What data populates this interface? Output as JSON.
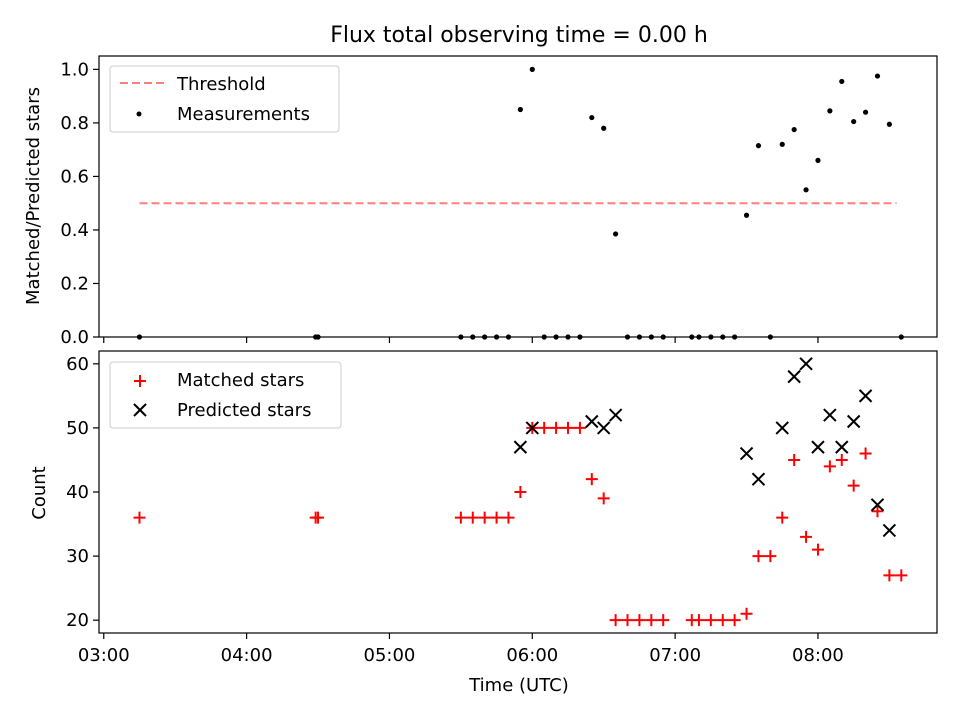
{
  "chart_data": [
    {
      "type": "scatter",
      "title": "Flux total observing time = 0.00 h",
      "ylabel": "Matched/Predicted stars",
      "ylim": [
        0,
        1.05
      ],
      "yticks": [
        0.0,
        0.2,
        0.4,
        0.6,
        0.8,
        1.0
      ],
      "ytick_labels": [
        "0.0",
        "0.2",
        "0.4",
        "0.6",
        "0.8",
        "1.0"
      ],
      "xlim": [
        "02:58",
        "08:50"
      ],
      "legend_position": "top-left",
      "threshold": {
        "name": "Threshold",
        "y": 0.5,
        "x_start": "03:15",
        "x_end": "08:33",
        "color": "#ff7f7f",
        "style": "dashed"
      },
      "series": [
        {
          "name": "Measurements",
          "marker": "dot",
          "color": "#000000",
          "points": [
            [
              "03:15",
              0.0
            ],
            [
              "04:29",
              0.0
            ],
            [
              "04:30",
              0.0
            ],
            [
              "05:30",
              0.0
            ],
            [
              "05:35",
              0.0
            ],
            [
              "05:40",
              0.0
            ],
            [
              "05:45",
              0.0
            ],
            [
              "05:50",
              0.0
            ],
            [
              "05:55",
              0.85
            ],
            [
              "06:00",
              1.0
            ],
            [
              "06:05",
              0.0
            ],
            [
              "06:10",
              0.0
            ],
            [
              "06:15",
              0.0
            ],
            [
              "06:20",
              0.0
            ],
            [
              "06:25",
              0.82
            ],
            [
              "06:30",
              0.78
            ],
            [
              "06:35",
              0.385
            ],
            [
              "06:40",
              0.0
            ],
            [
              "06:45",
              0.0
            ],
            [
              "06:50",
              0.0
            ],
            [
              "06:55",
              0.0
            ],
            [
              "07:07",
              0.0
            ],
            [
              "07:10",
              0.0
            ],
            [
              "07:15",
              0.0
            ],
            [
              "07:20",
              0.0
            ],
            [
              "07:25",
              0.0
            ],
            [
              "07:30",
              0.455
            ],
            [
              "07:35",
              0.715
            ],
            [
              "07:40",
              0.0
            ],
            [
              "07:45",
              0.72
            ],
            [
              "07:50",
              0.775
            ],
            [
              "07:55",
              0.55
            ],
            [
              "08:00",
              0.66
            ],
            [
              "08:05",
              0.845
            ],
            [
              "08:10",
              0.955
            ],
            [
              "08:15",
              0.805
            ],
            [
              "08:20",
              0.84
            ],
            [
              "08:25",
              0.975
            ],
            [
              "08:30",
              0.795
            ],
            [
              "08:35",
              0.0
            ]
          ]
        }
      ]
    },
    {
      "type": "scatter",
      "xlabel": "Time (UTC)",
      "ylabel": "Count",
      "ylim": [
        18,
        62
      ],
      "yticks": [
        20,
        30,
        40,
        50,
        60
      ],
      "ytick_labels": [
        "20",
        "30",
        "40",
        "50",
        "60"
      ],
      "xlim": [
        "02:58",
        "08:50"
      ],
      "xticks": [
        "03:00",
        "04:00",
        "05:00",
        "06:00",
        "07:00",
        "08:00"
      ],
      "xtick_labels": [
        "03:00",
        "04:00",
        "05:00",
        "06:00",
        "07:00",
        "08:00"
      ],
      "legend_position": "top-left",
      "series": [
        {
          "name": "Matched stars",
          "marker": "plus",
          "color": "#ff0000",
          "points": [
            [
              "03:15",
              36
            ],
            [
              "04:29",
              36
            ],
            [
              "04:30",
              36
            ],
            [
              "05:30",
              36
            ],
            [
              "05:35",
              36
            ],
            [
              "05:40",
              36
            ],
            [
              "05:45",
              36
            ],
            [
              "05:50",
              36
            ],
            [
              "05:55",
              40
            ],
            [
              "06:00",
              50
            ],
            [
              "06:05",
              50
            ],
            [
              "06:10",
              50
            ],
            [
              "06:15",
              50
            ],
            [
              "06:20",
              50
            ],
            [
              "06:25",
              42
            ],
            [
              "06:30",
              39
            ],
            [
              "06:35",
              20
            ],
            [
              "06:40",
              20
            ],
            [
              "06:45",
              20
            ],
            [
              "06:50",
              20
            ],
            [
              "06:55",
              20
            ],
            [
              "07:07",
              20
            ],
            [
              "07:10",
              20
            ],
            [
              "07:15",
              20
            ],
            [
              "07:20",
              20
            ],
            [
              "07:25",
              20
            ],
            [
              "07:30",
              21
            ],
            [
              "07:35",
              30
            ],
            [
              "07:40",
              30
            ],
            [
              "07:45",
              36
            ],
            [
              "07:50",
              45
            ],
            [
              "07:55",
              33
            ],
            [
              "08:00",
              31
            ],
            [
              "08:05",
              44
            ],
            [
              "08:10",
              45
            ],
            [
              "08:15",
              41
            ],
            [
              "08:20",
              46
            ],
            [
              "08:25",
              37
            ],
            [
              "08:30",
              27
            ],
            [
              "08:35",
              27
            ]
          ]
        },
        {
          "name": "Predicted stars",
          "marker": "x",
          "color": "#000000",
          "points": [
            [
              "05:55",
              47
            ],
            [
              "06:00",
              50
            ],
            [
              "06:25",
              51
            ],
            [
              "06:30",
              50
            ],
            [
              "06:35",
              52
            ],
            [
              "07:30",
              46
            ],
            [
              "07:35",
              42
            ],
            [
              "07:45",
              50
            ],
            [
              "07:50",
              58
            ],
            [
              "07:55",
              60
            ],
            [
              "08:00",
              47
            ],
            [
              "08:05",
              52
            ],
            [
              "08:10",
              47
            ],
            [
              "08:15",
              51
            ],
            [
              "08:20",
              55
            ],
            [
              "08:25",
              38
            ],
            [
              "08:30",
              34
            ]
          ]
        }
      ]
    }
  ]
}
